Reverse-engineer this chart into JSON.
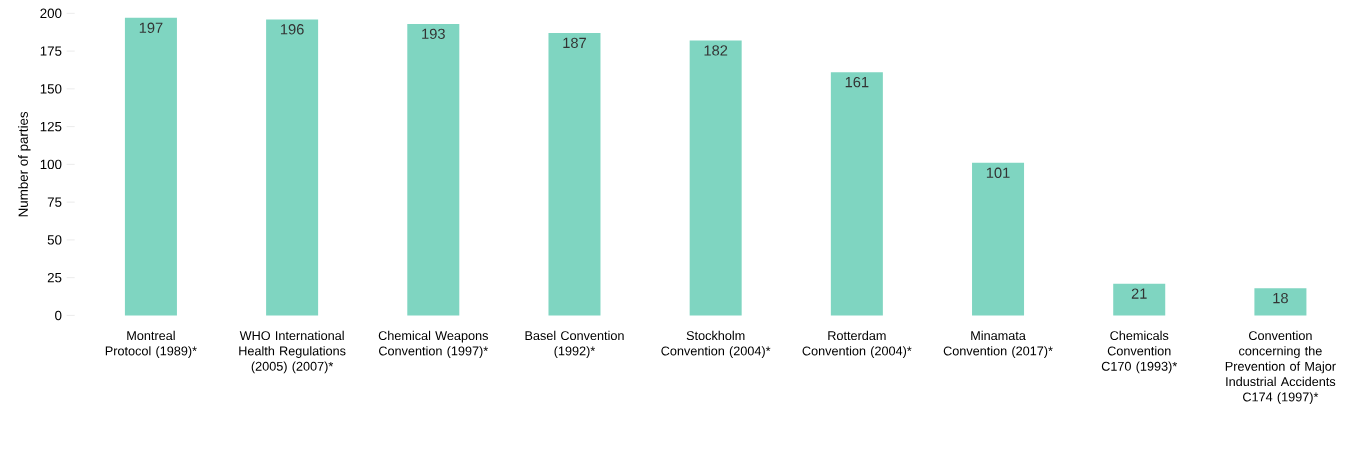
{
  "chart_data": {
    "type": "bar",
    "ylabel": "Number of parties",
    "categories": [
      "Montreal Protocol (1989)*",
      "WHO International Health Regulations (2005) (2007)*",
      "Chemical Weapons Convention (1997)*",
      "Basel Convention (1992)*",
      "Stockholm Convention (2004)*",
      "Rotterdam Convention (2004)*",
      "Minamata Convention (2017)*",
      "Chemicals Convention  C170 (1993)*",
      "Convention concerning the Prevention of Major Industrial Accidents C174 (1997)*"
    ],
    "values": [
      197,
      196,
      193,
      187,
      182,
      161,
      101,
      21,
      18
    ],
    "color": "#7fd5c1",
    "ylim": [
      0,
      200
    ],
    "yticks": [
      0,
      25,
      50,
      75,
      100,
      125,
      150,
      175,
      200
    ],
    "data_labels": true
  }
}
